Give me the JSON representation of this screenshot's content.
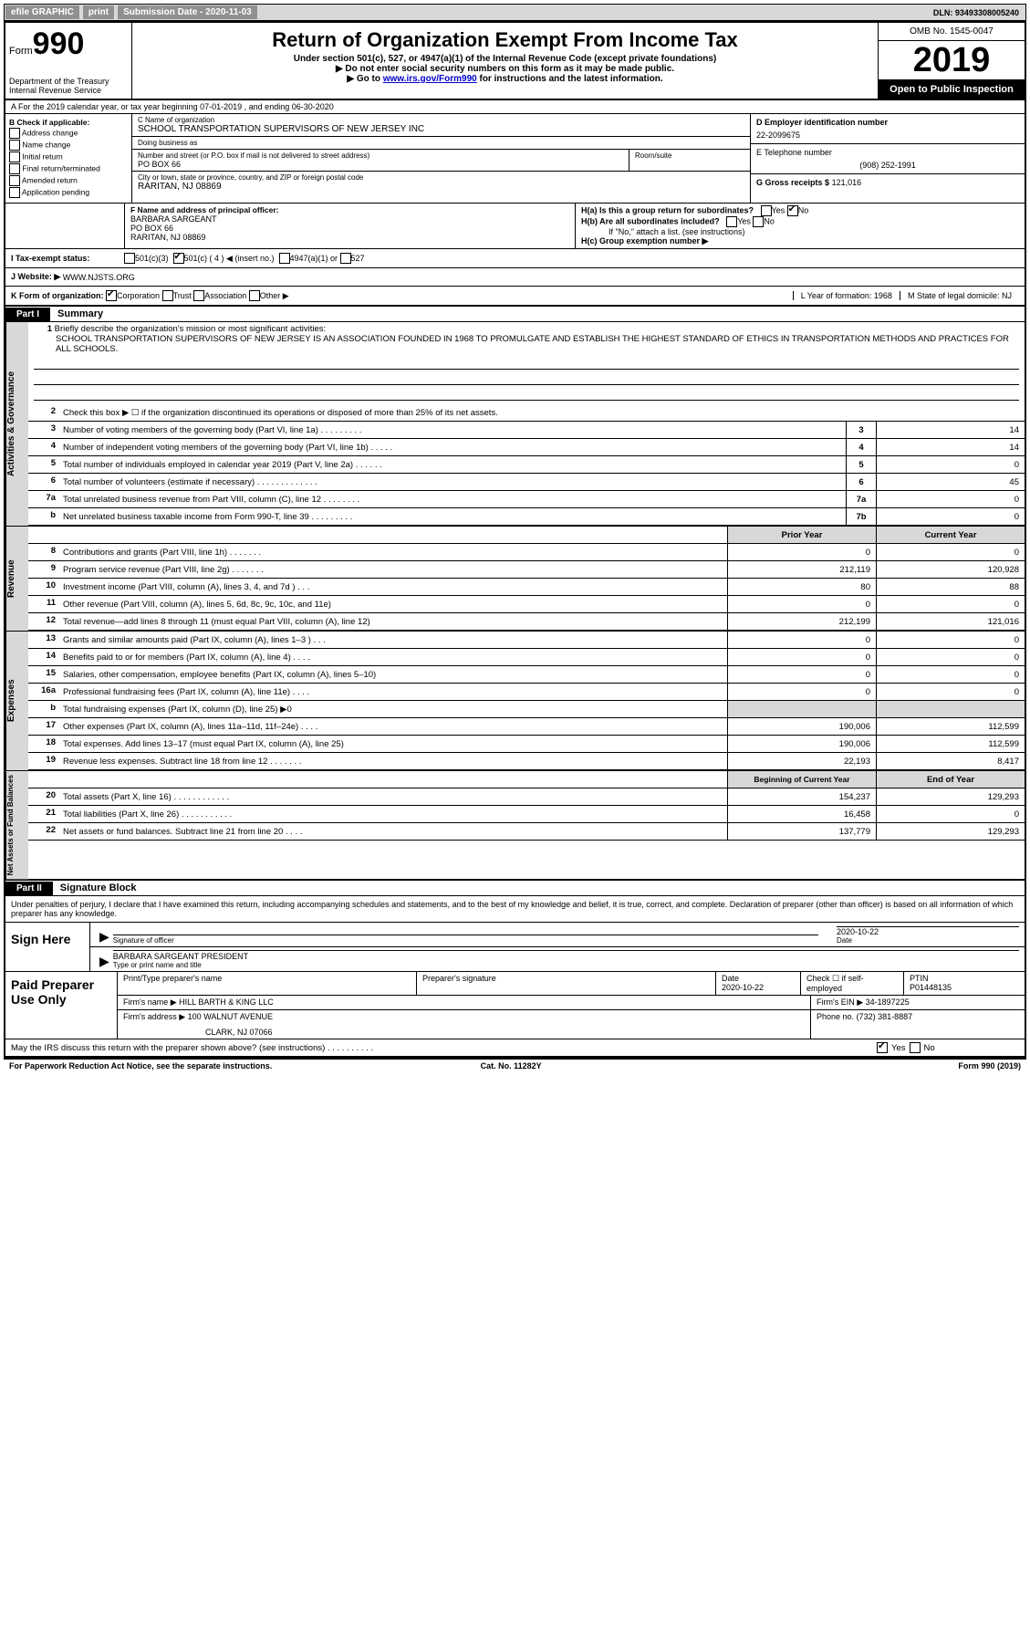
{
  "topbar": {
    "efile": "efile GRAPHIC",
    "print": "print",
    "subdate_label": "Submission Date - 2020-11-03",
    "dln": "DLN: 93493308005240"
  },
  "header": {
    "form_label": "Form",
    "form_num": "990",
    "dept": "Department of the Treasury\nInternal Revenue Service",
    "title": "Return of Organization Exempt From Income Tax",
    "sub1": "Under section 501(c), 527, or 4947(a)(1) of the Internal Revenue Code (except private foundations)",
    "sub2": "▶ Do not enter social security numbers on this form as it may be made public.",
    "sub3a": "▶ Go to ",
    "sub3_link": "www.irs.gov/Form990",
    "sub3b": " for instructions and the latest information.",
    "omb": "OMB No. 1545-0047",
    "year": "2019",
    "inspection": "Open to Public Inspection"
  },
  "row_a": "A For the 2019 calendar year, or tax year beginning 07-01-2019    , and ending 06-30-2020",
  "col_b": {
    "label": "B Check if applicable:",
    "items": [
      "Address change",
      "Name change",
      "Initial return",
      "Final return/terminated",
      "Amended return",
      "Application pending"
    ]
  },
  "col_c": {
    "name_label": "C Name of organization",
    "name": "SCHOOL TRANSPORTATION SUPERVISORS OF NEW JERSEY INC",
    "dba_label": "Doing business as",
    "dba": "",
    "addr_label": "Number and street (or P.O. box if mail is not delivered to street address)",
    "room_label": "Room/suite",
    "addr": "PO BOX 66",
    "city_label": "City or town, state or province, country, and ZIP or foreign postal code",
    "city": "RARITAN, NJ  08869"
  },
  "col_d": {
    "label": "D Employer identification number",
    "val": "22-2099675"
  },
  "col_e": {
    "label": "E Telephone number",
    "val": "(908) 252-1991"
  },
  "col_g": {
    "label": "G Gross receipts $",
    "val": "121,016"
  },
  "col_f": {
    "label": "F  Name and address of principal officer:",
    "name": "BARBARA SARGEANT",
    "addr1": "PO BOX 66",
    "addr2": "RARITAN, NJ  08869"
  },
  "col_h": {
    "ha": "H(a)  Is this a group return for subordinates?",
    "ha_yes": "Yes",
    "ha_no": "No",
    "hb": "H(b)  Are all subordinates included?",
    "hb_yes": "Yes",
    "hb_no": "No",
    "hb_note": "If \"No,\" attach a list. (see instructions)",
    "hc": "H(c)  Group exemption number ▶"
  },
  "tax_status": {
    "label": "I  Tax-exempt status:",
    "o1": "501(c)(3)",
    "o2": "501(c) ( 4 ) ◀ (insert no.)",
    "o3": "4947(a)(1) or",
    "o4": "527"
  },
  "website": {
    "label": "J  Website: ▶",
    "val": "WWW.NJSTS.ORG"
  },
  "row_k": {
    "label": "K Form of organization:",
    "o1": "Corporation",
    "o2": "Trust",
    "o3": "Association",
    "o4": "Other ▶",
    "l": "L Year of formation: 1968",
    "m": "M State of legal domicile: NJ"
  },
  "part1": {
    "tab": "Part I",
    "title": "Summary"
  },
  "mission": {
    "num": "1",
    "label": "Briefly describe the organization's mission or most significant activities:",
    "text": "SCHOOL TRANSPORTATION SUPERVISORS OF NEW JERSEY IS AN ASSOCIATION FOUNDED IN 1968 TO PROMULGATE AND ESTABLISH THE HIGHEST STANDARD OF ETHICS IN TRANSPORTATION METHODS AND PRACTICES FOR ALL SCHOOLS."
  },
  "gov_lines": [
    {
      "n": "2",
      "d": "Check this box ▶ ☐ if the organization discontinued its operations or disposed of more than 25% of its net assets."
    },
    {
      "n": "3",
      "d": "Number of voting members of the governing body (Part VI, line 1a)  .   .   .   .   .   .   .   .   .",
      "box": "3",
      "v": "14"
    },
    {
      "n": "4",
      "d": "Number of independent voting members of the governing body (Part VI, line 1b)  .   .   .   .   .",
      "box": "4",
      "v": "14"
    },
    {
      "n": "5",
      "d": "Total number of individuals employed in calendar year 2019 (Part V, line 2a)  .   .   .   .   .   .",
      "box": "5",
      "v": "0"
    },
    {
      "n": "6",
      "d": "Total number of volunteers (estimate if necessary)   .   .   .   .   .   .   .   .   .   .   .   .   .",
      "box": "6",
      "v": "45"
    },
    {
      "n": "7a",
      "d": "Total unrelated business revenue from Part VIII, column (C), line 12  .   .   .   .   .   .   .   .",
      "box": "7a",
      "v": "0"
    },
    {
      "n": "b",
      "d": "Net unrelated business taxable income from Form 990-T, line 39   .   .   .   .   .   .   .   .   .",
      "box": "7b",
      "v": "0"
    }
  ],
  "col_hdrs": {
    "prior": "Prior Year",
    "current": "Current Year"
  },
  "rev_lines": [
    {
      "n": "8",
      "d": "Contributions and grants (Part VIII, line 1h)   .   .   .   .   .   .   .",
      "p": "0",
      "c": "0"
    },
    {
      "n": "9",
      "d": "Program service revenue (Part VIII, line 2g)   .   .   .   .   .   .   .",
      "p": "212,119",
      "c": "120,928"
    },
    {
      "n": "10",
      "d": "Investment income (Part VIII, column (A), lines 3, 4, and 7d )   .   .   .",
      "p": "80",
      "c": "88"
    },
    {
      "n": "11",
      "d": "Other revenue (Part VIII, column (A), lines 5, 6d, 8c, 9c, 10c, and 11e)",
      "p": "0",
      "c": "0"
    },
    {
      "n": "12",
      "d": "Total revenue—add lines 8 through 11 (must equal Part VIII, column (A), line 12)",
      "p": "212,199",
      "c": "121,016"
    }
  ],
  "exp_lines": [
    {
      "n": "13",
      "d": "Grants and similar amounts paid (Part IX, column (A), lines 1–3 )  .   .   .",
      "p": "0",
      "c": "0"
    },
    {
      "n": "14",
      "d": "Benefits paid to or for members (Part IX, column (A), line 4)  .   .   .   .",
      "p": "0",
      "c": "0"
    },
    {
      "n": "15",
      "d": "Salaries, other compensation, employee benefits (Part IX, column (A), lines 5–10)",
      "p": "0",
      "c": "0"
    },
    {
      "n": "16a",
      "d": "Professional fundraising fees (Part IX, column (A), line 11e)  .   .   .   .",
      "p": "0",
      "c": "0"
    },
    {
      "n": "b",
      "d": "Total fundraising expenses (Part IX, column (D), line 25) ▶0",
      "shade": true
    },
    {
      "n": "17",
      "d": "Other expenses (Part IX, column (A), lines 11a–11d, 11f–24e)  .   .   .   .",
      "p": "190,006",
      "c": "112,599"
    },
    {
      "n": "18",
      "d": "Total expenses. Add lines 13–17 (must equal Part IX, column (A), line 25)",
      "p": "190,006",
      "c": "112,599"
    },
    {
      "n": "19",
      "d": "Revenue less expenses. Subtract line 18 from line 12 .   .   .   .   .   .   .",
      "p": "22,193",
      "c": "8,417"
    }
  ],
  "na_hdrs": {
    "begin": "Beginning of Current Year",
    "end": "End of Year"
  },
  "na_lines": [
    {
      "n": "20",
      "d": "Total assets (Part X, line 16)  .   .   .   .   .   .   .   .   .   .   .   .",
      "p": "154,237",
      "c": "129,293"
    },
    {
      "n": "21",
      "d": "Total liabilities (Part X, line 26)  .   .   .   .   .   .   .   .   .   .   .",
      "p": "16,458",
      "c": "0"
    },
    {
      "n": "22",
      "d": "Net assets or fund balances. Subtract line 21 from line 20  .   .   .   .",
      "p": "137,779",
      "c": "129,293"
    }
  ],
  "vlabels": {
    "gov": "Activities & Governance",
    "rev": "Revenue",
    "exp": "Expenses",
    "na": "Net Assets or Fund Balances"
  },
  "part2": {
    "tab": "Part II",
    "title": "Signature Block"
  },
  "sig": {
    "decl": "Under penalties of perjury, I declare that I have examined this return, including accompanying schedules and statements, and to the best of my knowledge and belief, it is true, correct, and complete. Declaration of preparer (other than officer) is based on all information of which preparer has any knowledge.",
    "sign_here": "Sign Here",
    "sig_officer": "Signature of officer",
    "date": "2020-10-22",
    "date_label": "Date",
    "name": "BARBARA SARGEANT PRESIDENT",
    "name_label": "Type or print name and title"
  },
  "prep": {
    "label": "Paid Preparer Use Only",
    "h1": "Print/Type preparer's name",
    "h2": "Preparer's signature",
    "h3": "Date",
    "h3v": "2020-10-22",
    "h4": "Check ☐ if self-employed",
    "h5": "PTIN",
    "h5v": "P01448135",
    "firm_label": "Firm's name    ▶",
    "firm": "HILL BARTH & KING LLC",
    "ein_label": "Firm's EIN ▶",
    "ein": "34-1897225",
    "addr_label": "Firm's address ▶",
    "addr1": "100 WALNUT AVENUE",
    "addr2": "CLARK, NJ  07066",
    "phone_label": "Phone no.",
    "phone": "(732) 381-8887"
  },
  "discuss": {
    "text": "May the IRS discuss this return with the preparer shown above? (see instructions)  .   .   .   .   .   .   .   .   .   .",
    "yes": "Yes",
    "no": "No"
  },
  "footer": {
    "left": "For Paperwork Reduction Act Notice, see the separate instructions.",
    "mid": "Cat. No. 11282Y",
    "right": "Form 990 (2019)"
  }
}
